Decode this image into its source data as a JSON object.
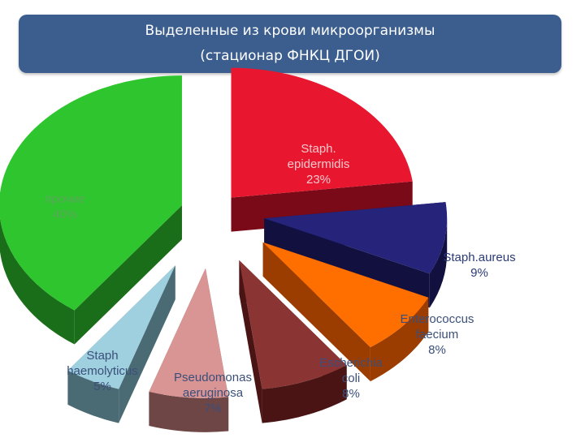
{
  "slide": {
    "title_line1": "Выделенные из крови микроорганизмы",
    "title_line2": "(стационар ФНКЦ ДГОИ)"
  },
  "chart_data": {
    "type": "pie",
    "three_d": true,
    "exploded": true,
    "legend": "none",
    "slices": [
      {
        "name": "Staph. epidermidis",
        "value": 23,
        "label_lines": [
          "Staph.",
          "epidermidis",
          "23%"
        ],
        "color": "#e8172f",
        "side_color": "#7a0a18",
        "label_color": "#f4c8cc"
      },
      {
        "name": "Staph.aureus",
        "value": 9,
        "label_lines": [
          "Staph.aureus",
          "9%"
        ],
        "color": "#25237a",
        "side_color": "#12103f",
        "label_color": "#2a3a78"
      },
      {
        "name": "Enterococcus faecium",
        "value": 8,
        "label_lines": [
          "Enterococcus",
          "faecium",
          "8%"
        ],
        "color": "#ff6f00",
        "side_color": "#9b3c00",
        "label_color": "#3b4f7a"
      },
      {
        "name": "Escherichia coli",
        "value": 8,
        "label_lines": [
          "Escherichia",
          "coli",
          "8%"
        ],
        "color": "#8a3434",
        "side_color": "#4a1414",
        "label_color": "#3b4f7a"
      },
      {
        "name": "Pseudomonas aeruginosa",
        "value": 7,
        "label_lines": [
          "Pseudomonas",
          "aeruginosa",
          "7%"
        ],
        "color": "#d99494",
        "side_color": "#6e4646",
        "label_color": "#3b4f7a"
      },
      {
        "name": "Staph haemolyticus",
        "value": 5,
        "label_lines": [
          "Staph",
          "haemolyticus",
          "5%"
        ],
        "color": "#9fd0df",
        "side_color": "#4a6a74",
        "label_color": "#3b4f7a"
      },
      {
        "name": "прочие",
        "value": 40,
        "label_lines": [
          "прочие",
          "40%"
        ],
        "color": "#2ec52e",
        "side_color": "#1a6e1a",
        "label_color": "#5aa85a"
      }
    ]
  }
}
